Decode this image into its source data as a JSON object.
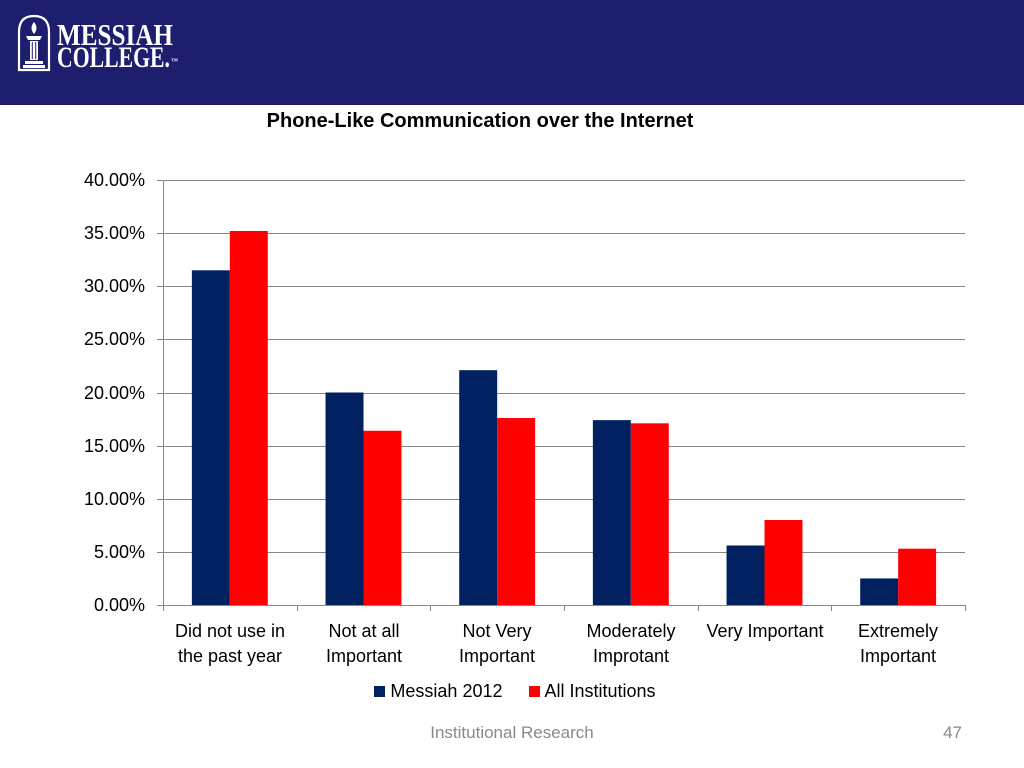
{
  "header": {
    "logo": {
      "icon": "college-seal-icon",
      "line1": "MESSIAH",
      "line2": "COLLEGE.",
      "mark": "™"
    }
  },
  "theme": {
    "header_background": "#1d1e6e",
    "gridline": "#868686",
    "footer_text": "#898989"
  },
  "chart_data": {
    "type": "bar",
    "title": "Phone-Like Communication over the Internet",
    "xlabel": "",
    "ylabel": "",
    "categories": [
      "Did not use in the past year",
      "Not at all Important",
      "Not Very Important",
      "Moderately Improtant",
      "Very Important",
      "Extremely Important"
    ],
    "series": [
      {
        "name": "Messiah 2012",
        "color": "#002060",
        "values": [
          31.5,
          20.0,
          22.1,
          17.4,
          5.6,
          2.5
        ]
      },
      {
        "name": "All Institutions",
        "color": "#ff0000",
        "values": [
          35.2,
          16.4,
          17.6,
          17.1,
          8.0,
          5.3
        ]
      }
    ],
    "ylim": [
      0,
      40
    ],
    "yticks": [
      0,
      5,
      10,
      15,
      20,
      25,
      30,
      35,
      40
    ],
    "ytick_labels": [
      "0.00%",
      "5.00%",
      "10.00%",
      "15.00%",
      "20.00%",
      "25.00%",
      "30.00%",
      "35.00%",
      "40.00%"
    ],
    "grid": true,
    "legend": "bottom"
  },
  "footer": {
    "department": "Institutional Research",
    "slide_number": "47"
  }
}
